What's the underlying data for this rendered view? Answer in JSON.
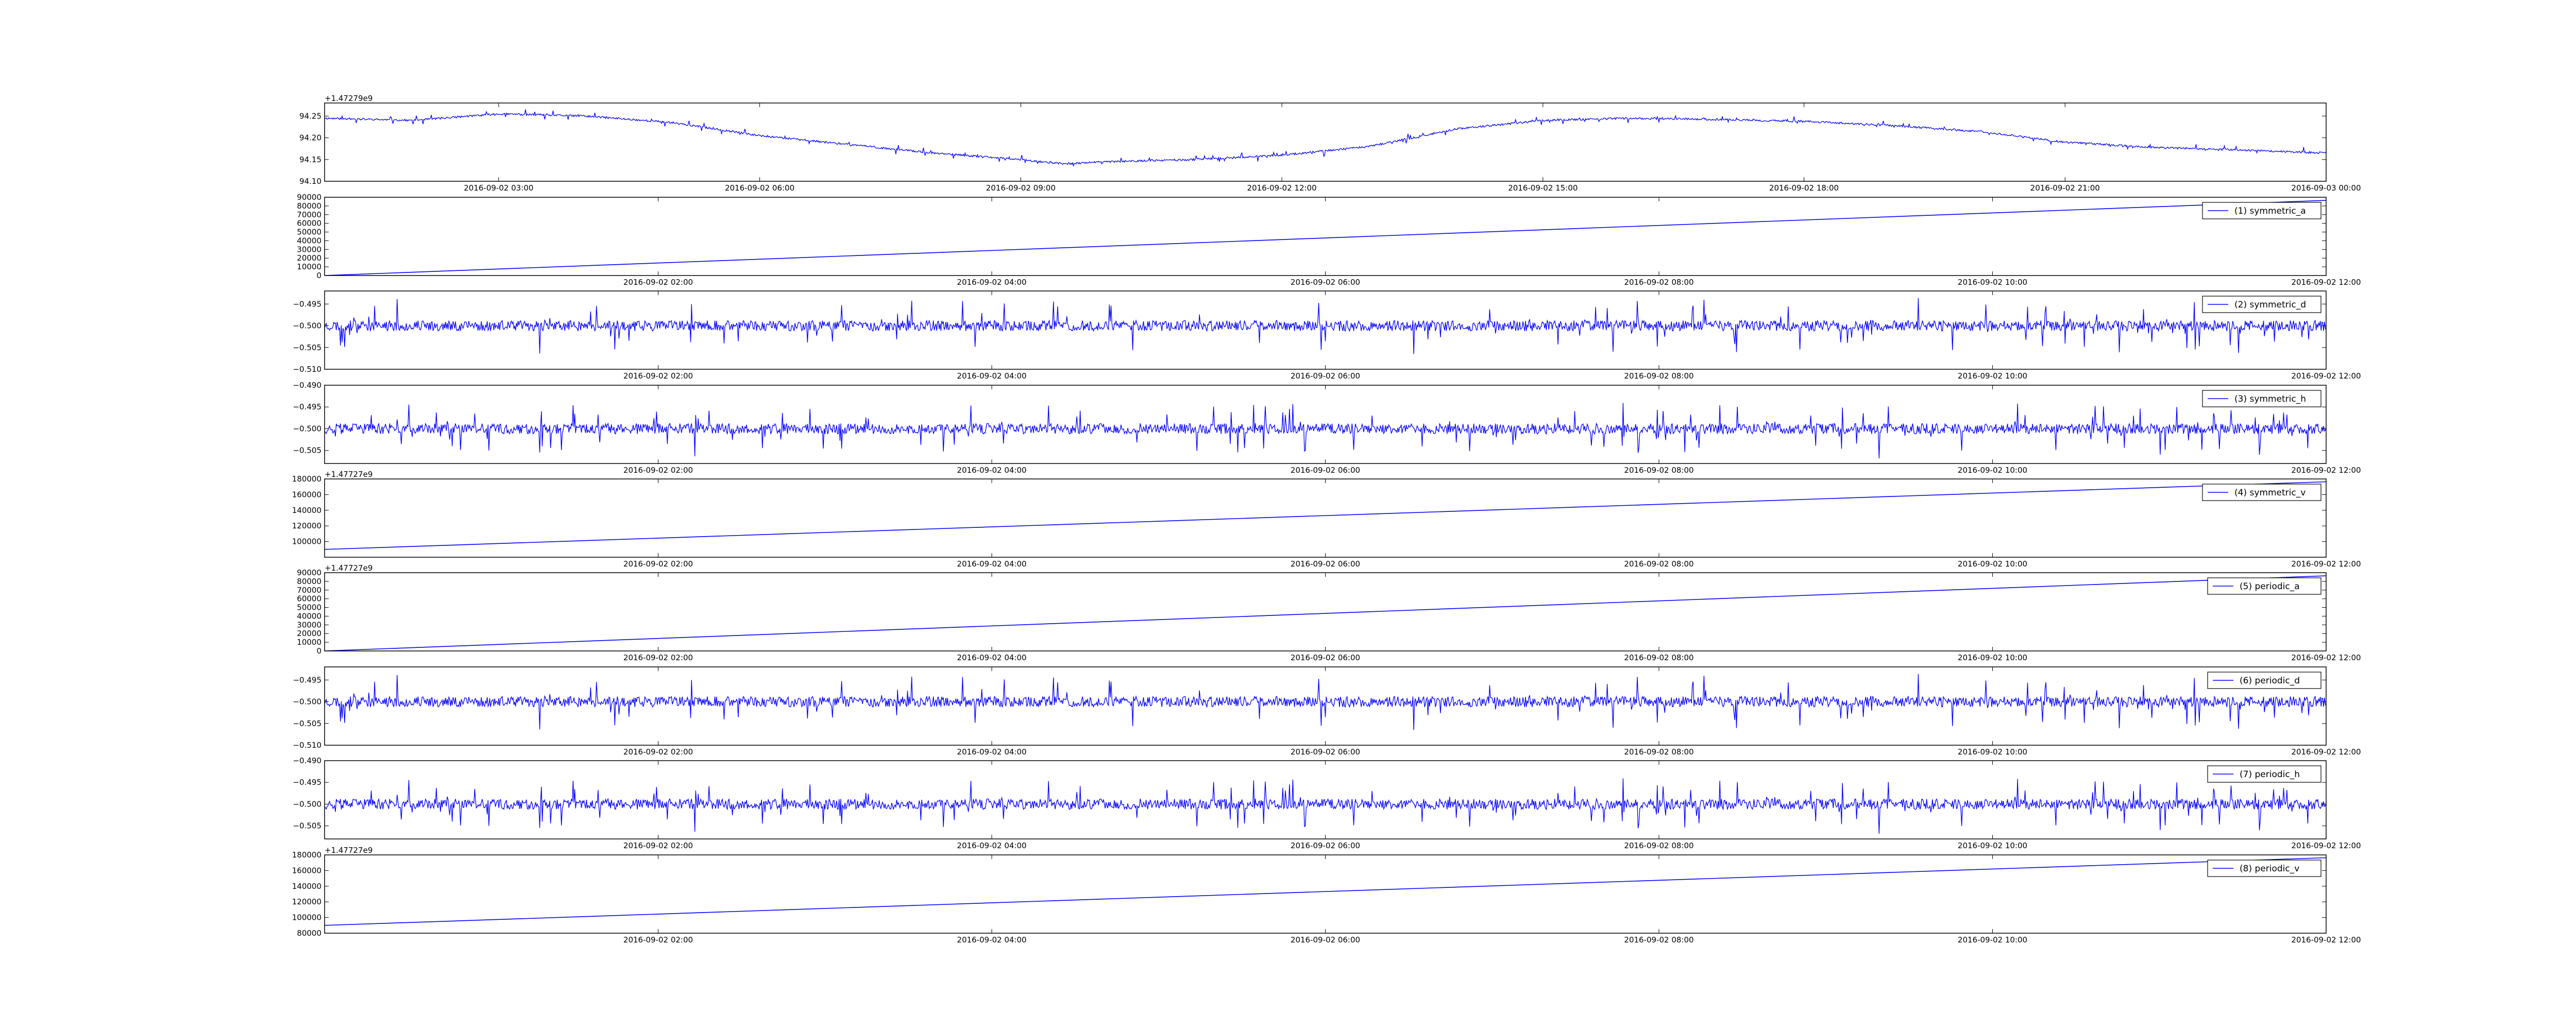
{
  "chart_data": [
    {
      "type": "line",
      "x_type": "time",
      "x_start": "2016-09-02 01:00",
      "x_end": "2016-09-03 00:00",
      "xticks": [
        "2016-09-02 03:00",
        "2016-09-02 06:00",
        "2016-09-02 09:00",
        "2016-09-02 12:00",
        "2016-09-02 15:00",
        "2016-09-02 18:00",
        "2016-09-02 21:00",
        "2016-09-03 00:00"
      ],
      "ylim": [
        94.1,
        94.28
      ],
      "yticks": [
        "94.10",
        "94.15",
        "94.20",
        "94.25"
      ],
      "offset_label": "+1.47279e9",
      "legend": "",
      "series": [
        {
          "color": "#0000ff",
          "noise": 0.004,
          "seed": 11,
          "x": [
            "2016-09-02 01:00",
            "2016-09-02 02:00",
            "2016-09-02 03:00",
            "2016-09-02 04:00",
            "2016-09-02 05:00",
            "2016-09-02 06:00",
            "2016-09-02 07:00",
            "2016-09-02 08:00",
            "2016-09-02 09:00",
            "2016-09-02 09:30",
            "2016-09-02 10:00",
            "2016-09-02 11:00",
            "2016-09-02 12:00",
            "2016-09-02 13:00",
            "2016-09-02 14:00",
            "2016-09-02 15:00",
            "2016-09-02 16:00",
            "2016-09-02 17:00",
            "2016-09-02 18:00",
            "2016-09-02 19:00",
            "2016-09-02 20:00",
            "2016-09-02 21:00",
            "2016-09-02 22:00",
            "2016-09-02 23:00",
            "2016-09-03 00:00"
          ],
          "y": [
            94.245,
            94.24,
            94.255,
            94.25,
            94.235,
            94.205,
            94.185,
            94.165,
            94.15,
            94.14,
            94.145,
            94.15,
            94.16,
            94.18,
            94.22,
            94.24,
            94.245,
            94.242,
            94.238,
            94.228,
            94.215,
            94.19,
            94.178,
            94.172,
            94.165
          ]
        }
      ]
    },
    {
      "type": "line",
      "x_type": "time",
      "x_start": "2016-09-02 00:00",
      "x_end": "2016-09-02 12:00",
      "xticks": [
        "2016-09-02 02:00",
        "2016-09-02 04:00",
        "2016-09-02 06:00",
        "2016-09-02 08:00",
        "2016-09-02 10:00",
        "2016-09-02 12:00"
      ],
      "ylim": [
        0,
        90000
      ],
      "yticks": [
        "0",
        "10000",
        "20000",
        "30000",
        "40000",
        "50000",
        "60000",
        "70000",
        "80000",
        "90000"
      ],
      "offset_label": "",
      "legend": "(1) symmetric_a",
      "series": [
        {
          "color": "#0000ff",
          "noise": 0,
          "seed": 1,
          "x": [
            "2016-09-02 00:00",
            "2016-09-02 12:00"
          ],
          "y": [
            0,
            86400
          ]
        }
      ]
    },
    {
      "type": "line",
      "x_type": "time",
      "x_start": "2016-09-02 00:00",
      "x_end": "2016-09-02 12:00",
      "xticks": [
        "2016-09-02 02:00",
        "2016-09-02 04:00",
        "2016-09-02 06:00",
        "2016-09-02 08:00",
        "2016-09-02 10:00",
        "2016-09-02 12:00"
      ],
      "ylim": [
        -0.51,
        -0.492
      ],
      "yticks": [
        "-0.510",
        "-0.505",
        "-0.500",
        "-0.495"
      ],
      "offset_label": "",
      "legend": "(2) symmetric_d",
      "series": [
        {
          "color": "#0000ff",
          "noise": 0.0022,
          "seed": 23,
          "x": [
            "2016-09-02 00:00",
            "2016-09-02 12:00"
          ],
          "y": [
            -0.5,
            -0.5
          ]
        }
      ]
    },
    {
      "type": "line",
      "x_type": "time",
      "x_start": "2016-09-02 00:00",
      "x_end": "2016-09-02 12:00",
      "xticks": [
        "2016-09-02 02:00",
        "2016-09-02 04:00",
        "2016-09-02 06:00",
        "2016-09-02 08:00",
        "2016-09-02 10:00",
        "2016-09-02 12:00"
      ],
      "ylim": [
        -0.508,
        -0.49
      ],
      "yticks": [
        "-0.505",
        "-0.500",
        "-0.495",
        "-0.490"
      ],
      "offset_label": "",
      "legend": "(3) symmetric_h",
      "series": [
        {
          "color": "#0000ff",
          "noise": 0.0022,
          "seed": 37,
          "x": [
            "2016-09-02 00:00",
            "2016-09-02 12:00"
          ],
          "y": [
            -0.5,
            -0.5
          ]
        }
      ]
    },
    {
      "type": "line",
      "x_type": "time",
      "x_start": "2016-09-02 00:00",
      "x_end": "2016-09-02 12:00",
      "xticks": [
        "2016-09-02 02:00",
        "2016-09-02 04:00",
        "2016-09-02 06:00",
        "2016-09-02 08:00",
        "2016-09-02 10:00",
        "2016-09-02 12:00"
      ],
      "ylim": [
        80000,
        180000
      ],
      "yticks": [
        "100000",
        "120000",
        "140000",
        "160000",
        "180000"
      ],
      "offset_label": "+1.47727e9",
      "legend": "(4) symmetric_v",
      "series": [
        {
          "color": "#0000ff",
          "noise": 0,
          "seed": 2,
          "x": [
            "2016-09-02 00:00",
            "2016-09-02 12:00"
          ],
          "y": [
            90000,
            176400
          ]
        }
      ]
    },
    {
      "type": "line",
      "x_type": "time",
      "x_start": "2016-09-02 00:00",
      "x_end": "2016-09-02 12:00",
      "xticks": [
        "2016-09-02 02:00",
        "2016-09-02 04:00",
        "2016-09-02 06:00",
        "2016-09-02 08:00",
        "2016-09-02 10:00",
        "2016-09-02 12:00"
      ],
      "ylim": [
        0,
        90000
      ],
      "yticks": [
        "0",
        "10000",
        "20000",
        "30000",
        "40000",
        "50000",
        "60000",
        "70000",
        "80000",
        "90000"
      ],
      "offset_label": "+1.47727e9",
      "legend": "(5) periodic_a",
      "series": [
        {
          "color": "#0000ff",
          "noise": 0,
          "seed": 3,
          "x": [
            "2016-09-02 00:00",
            "2016-09-02 12:00"
          ],
          "y": [
            0,
            86400
          ]
        }
      ]
    },
    {
      "type": "line",
      "x_type": "time",
      "x_start": "2016-09-02 00:00",
      "x_end": "2016-09-02 12:00",
      "xticks": [
        "2016-09-02 02:00",
        "2016-09-02 04:00",
        "2016-09-02 06:00",
        "2016-09-02 08:00",
        "2016-09-02 10:00",
        "2016-09-02 12:00"
      ],
      "ylim": [
        -0.51,
        -0.492
      ],
      "yticks": [
        "-0.510",
        "-0.505",
        "-0.500",
        "-0.495"
      ],
      "offset_label": "",
      "legend": "(6) periodic_d",
      "series": [
        {
          "color": "#0000ff",
          "noise": 0.0022,
          "seed": 23,
          "x": [
            "2016-09-02 00:00",
            "2016-09-02 12:00"
          ],
          "y": [
            -0.5,
            -0.5
          ]
        }
      ]
    },
    {
      "type": "line",
      "x_type": "time",
      "x_start": "2016-09-02 00:00",
      "x_end": "2016-09-02 12:00",
      "xticks": [
        "2016-09-02 02:00",
        "2016-09-02 04:00",
        "2016-09-02 06:00",
        "2016-09-02 08:00",
        "2016-09-02 10:00",
        "2016-09-02 12:00"
      ],
      "ylim": [
        -0.508,
        -0.49
      ],
      "yticks": [
        "-0.505",
        "-0.500",
        "-0.495",
        "-0.490"
      ],
      "offset_label": "",
      "legend": "(7) periodic_h",
      "series": [
        {
          "color": "#0000ff",
          "noise": 0.0022,
          "seed": 37,
          "x": [
            "2016-09-02 00:00",
            "2016-09-02 12:00"
          ],
          "y": [
            -0.5,
            -0.5
          ]
        }
      ]
    },
    {
      "type": "line",
      "x_type": "time",
      "x_start": "2016-09-02 00:00",
      "x_end": "2016-09-02 12:00",
      "xticks": [
        "2016-09-02 02:00",
        "2016-09-02 04:00",
        "2016-09-02 06:00",
        "2016-09-02 08:00",
        "2016-09-02 10:00",
        "2016-09-02 12:00"
      ],
      "ylim": [
        80000,
        180000
      ],
      "yticks": [
        "80000",
        "100000",
        "120000",
        "140000",
        "160000",
        "180000"
      ],
      "offset_label": "+1.47727e9",
      "legend": "(8) periodic_v",
      "series": [
        {
          "color": "#0000ff",
          "noise": 0,
          "seed": 4,
          "x": [
            "2016-09-02 00:00",
            "2016-09-02 12:00"
          ],
          "y": [
            90000,
            176400
          ]
        }
      ]
    }
  ]
}
